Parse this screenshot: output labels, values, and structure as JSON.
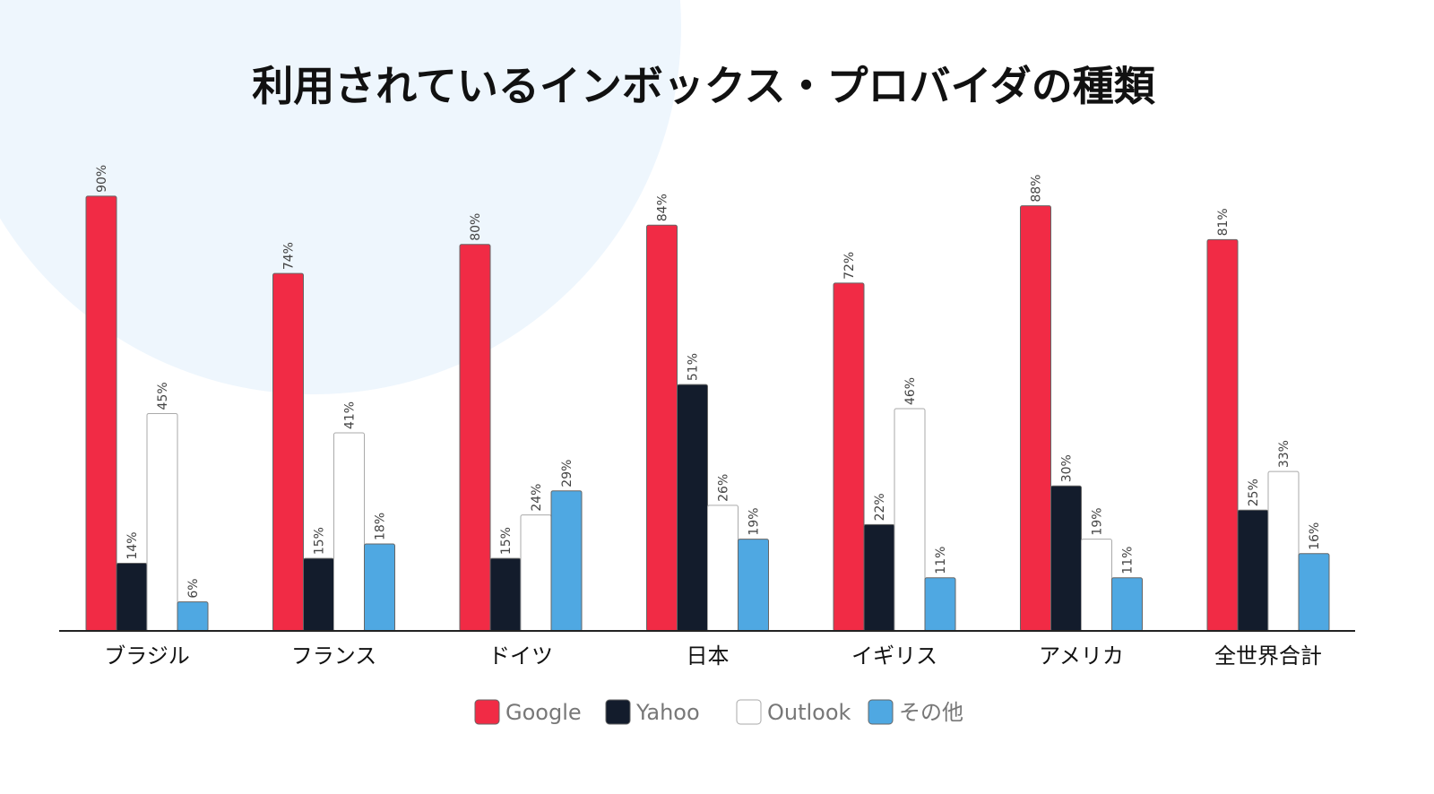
{
  "chart_data": {
    "type": "bar",
    "title": "利用されているインボックス・プロバイダの種類",
    "xlabel": "",
    "ylabel": "",
    "ylim": [
      0,
      100
    ],
    "grid": false,
    "legend_position": "bottom-center",
    "categories": [
      "ブラジル",
      "フランス",
      "ドイツ",
      "日本",
      "イギリス",
      "アメリカ",
      "全世界合計"
    ],
    "series": [
      {
        "name": "Google",
        "color": "#f12b45",
        "values": [
          90,
          74,
          80,
          84,
          72,
          88,
          81
        ]
      },
      {
        "name": "Yahoo",
        "color": "#131c2c",
        "values": [
          14,
          15,
          15,
          51,
          22,
          30,
          25
        ]
      },
      {
        "name": "Outlook",
        "color": "#ffffff",
        "values": [
          45,
          41,
          24,
          26,
          46,
          19,
          33
        ]
      },
      {
        "name": "その他",
        "color": "#4fa8e2",
        "values": [
          6,
          18,
          29,
          19,
          11,
          11,
          16
        ]
      }
    ],
    "value_suffix": "%"
  }
}
